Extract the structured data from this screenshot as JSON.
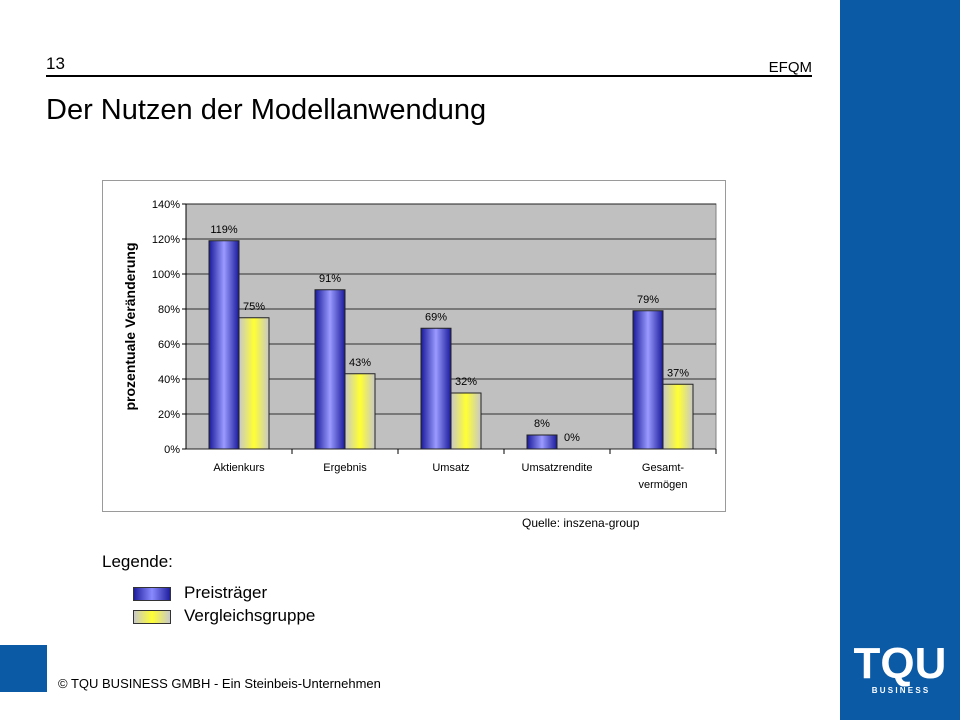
{
  "header": {
    "page_number": "13",
    "label": "EFQM",
    "title": "Der Nutzen der Modellanwendung"
  },
  "chart_data": {
    "type": "bar",
    "categories": [
      "Aktienkurs",
      "Ergebnis",
      "Umsatz",
      "Umsatzrendite",
      "Gesamt-\nvermögen"
    ],
    "series": [
      {
        "name": "Preisträger",
        "values": [
          119,
          91,
          69,
          8,
          79
        ],
        "color": "#2b2bd6"
      },
      {
        "name": "Vergleichsgruppe",
        "values": [
          75,
          43,
          32,
          0,
          37
        ],
        "color": "#ffff33"
      }
    ],
    "value_labels": [
      [
        "119%",
        "91%",
        "69%",
        "8%",
        "79%"
      ],
      [
        "75%",
        "43%",
        "32%",
        "0%",
        "37%"
      ]
    ],
    "ylabel": "prozentuale Veränderung",
    "ylim": [
      0,
      140
    ],
    "yticks": [
      0,
      20,
      40,
      60,
      80,
      100,
      120,
      140
    ],
    "ytick_labels": [
      "0%",
      "20%",
      "40%",
      "60%",
      "80%",
      "100%",
      "120%",
      "140%"
    ],
    "grid": true,
    "plot_background": "#c0c0c0"
  },
  "source": "Quelle: inszena-group",
  "legend": {
    "title": "Legende:",
    "items": [
      {
        "label": "Preisträger"
      },
      {
        "label": "Vergleichsgruppe"
      }
    ]
  },
  "footer": {
    "text": "© TQU BUSINESS GMBH - Ein Steinbeis-Unternehmen"
  },
  "logo": {
    "main": "TQU",
    "sub": "B U S I N E S S"
  },
  "colors": {
    "brand_blue": "#0b5aa6"
  }
}
